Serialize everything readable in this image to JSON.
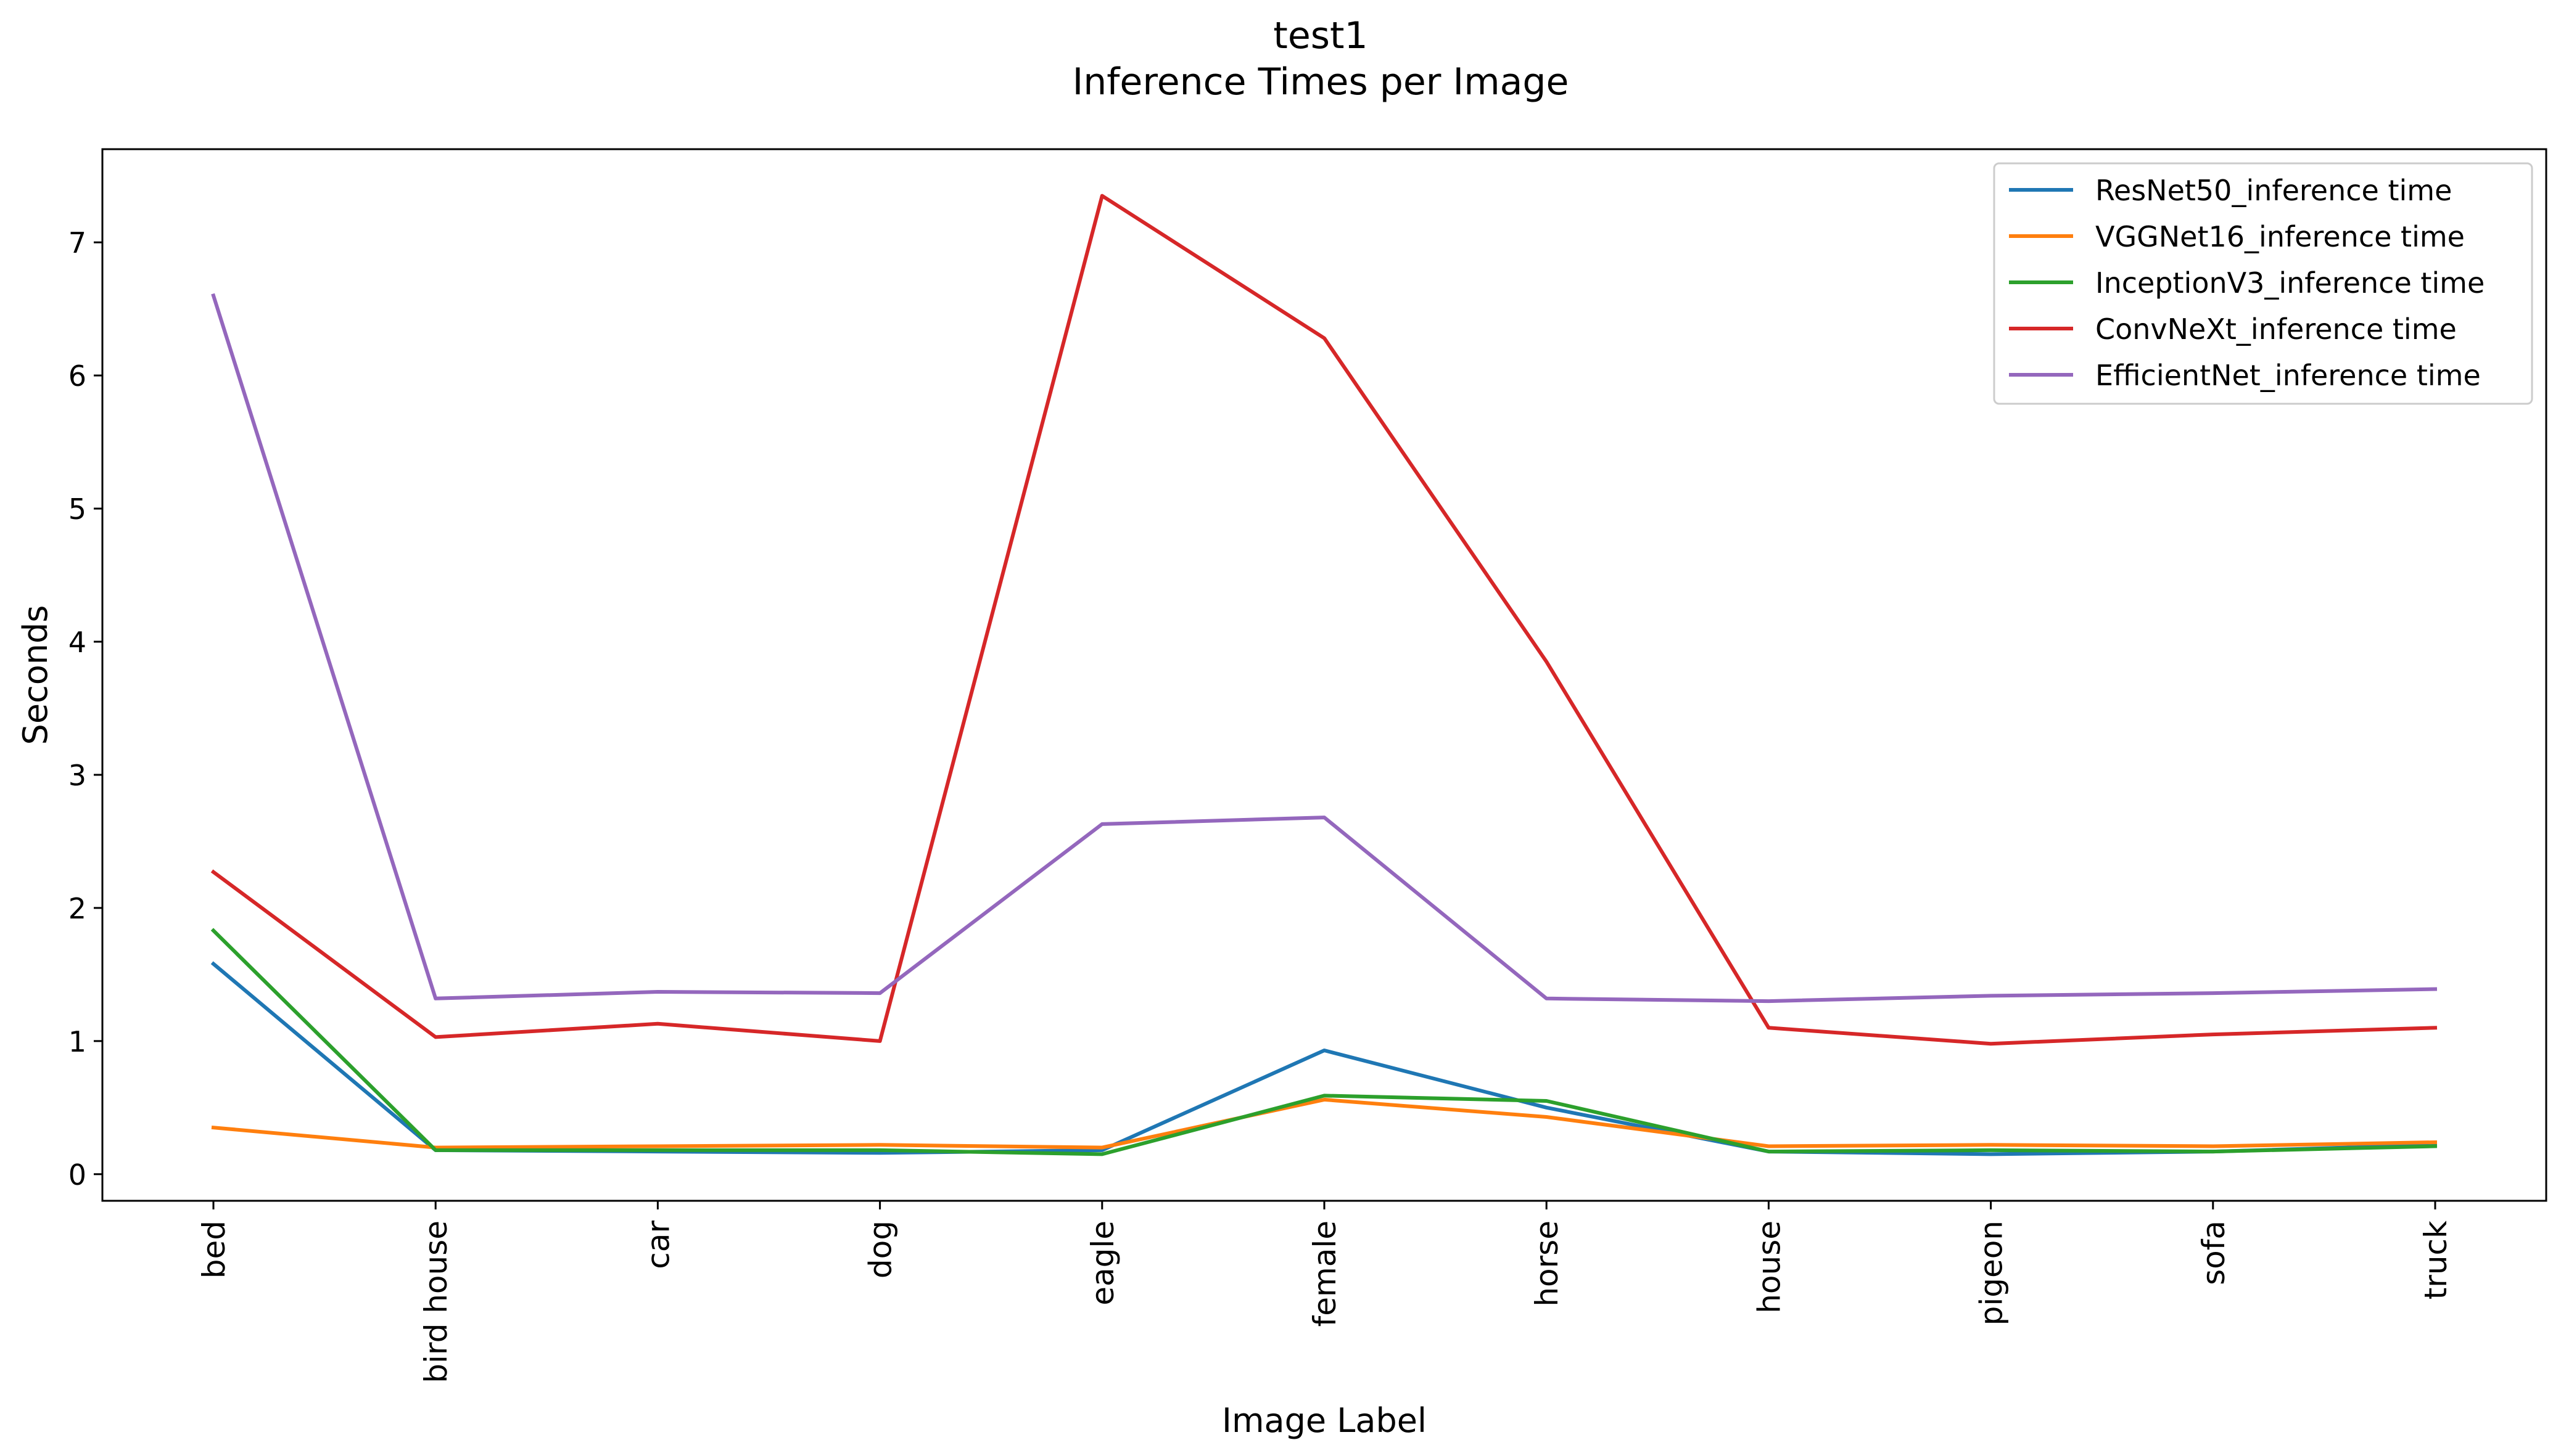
{
  "chart_data": {
    "type": "line",
    "title": "test1",
    "subtitle": "Inference Times per Image",
    "xlabel": "Image Label",
    "ylabel": "Seconds",
    "categories": [
      "bed",
      "bird house",
      "car",
      "dog",
      "eagle",
      "female",
      "horse",
      "house",
      "pigeon",
      "sofa",
      "truck"
    ],
    "ylim": [
      -0.2,
      7.7
    ],
    "yticks": [
      "0",
      "1",
      "2",
      "3",
      "4",
      "5",
      "6",
      "7"
    ],
    "grid": false,
    "legend_position": "top-right",
    "series": [
      {
        "name": "ResNet50_inference time",
        "color": "#1f77b4",
        "values": [
          1.58,
          0.18,
          0.17,
          0.16,
          0.18,
          0.93,
          0.5,
          0.17,
          0.15,
          0.17,
          0.22
        ]
      },
      {
        "name": "VGGNet16_inference time",
        "color": "#ff7f0e",
        "values": [
          0.35,
          0.2,
          0.21,
          0.22,
          0.2,
          0.56,
          0.43,
          0.21,
          0.22,
          0.21,
          0.24
        ]
      },
      {
        "name": "InceptionV3_inference time",
        "color": "#2ca02c",
        "values": [
          1.83,
          0.18,
          0.18,
          0.18,
          0.15,
          0.59,
          0.55,
          0.17,
          0.18,
          0.17,
          0.21
        ]
      },
      {
        "name": "ConvNeXt_inference time",
        "color": "#d62728",
        "values": [
          2.27,
          1.03,
          1.13,
          1.0,
          7.35,
          6.28,
          3.85,
          1.1,
          0.98,
          1.05,
          1.1
        ]
      },
      {
        "name": "EfficientNet_inference time",
        "color": "#9467bd",
        "values": [
          6.6,
          1.32,
          1.37,
          1.36,
          2.63,
          2.68,
          1.32,
          1.3,
          1.34,
          1.36,
          1.39
        ]
      }
    ]
  }
}
